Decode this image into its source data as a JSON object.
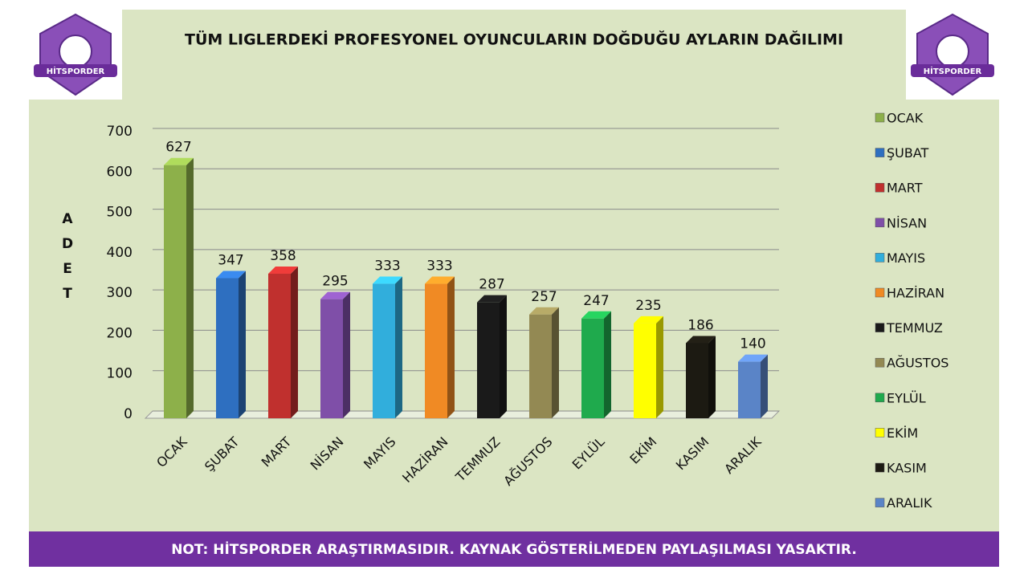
{
  "chart_data": {
    "type": "bar",
    "title": "TÜM LIGLERDEKİ PROFESYONEL OYUNCULARIN DOĞDUĞU AYLARIN DAĞILIMI",
    "y_label": "ADET",
    "categories": [
      "OCAK",
      "ŞUBAT",
      "MART",
      "NİSAN",
      "MAYIS",
      "HAZİRAN",
      "TEMMUZ",
      "AĞUSTOS",
      "EYLÜL",
      "EKİM",
      "KASIM",
      "ARALIK"
    ],
    "values": [
      627,
      347,
      358,
      295,
      333,
      333,
      287,
      257,
      247,
      235,
      186,
      140
    ],
    "colors": [
      "#8db04a",
      "#2e6fc0",
      "#c0302e",
      "#7f4fa8",
      "#31aedc",
      "#f08a24",
      "#1a1a1a",
      "#938953",
      "#1faa4d",
      "#ffff00",
      "#1c1a12",
      "#5a84c7"
    ],
    "ylim": [
      0,
      700
    ],
    "yticks": [
      0,
      100,
      200,
      300,
      400,
      500,
      600,
      700
    ],
    "grid": true,
    "legend": "right",
    "note": "NOT: HİTSPORDER ARAŞTIRMASIDIR. KAYNAK GÖSTERİLMEDEN PAYLAŞILMASI YASAKTIR.",
    "logo_text": "HİTSPORDER"
  }
}
